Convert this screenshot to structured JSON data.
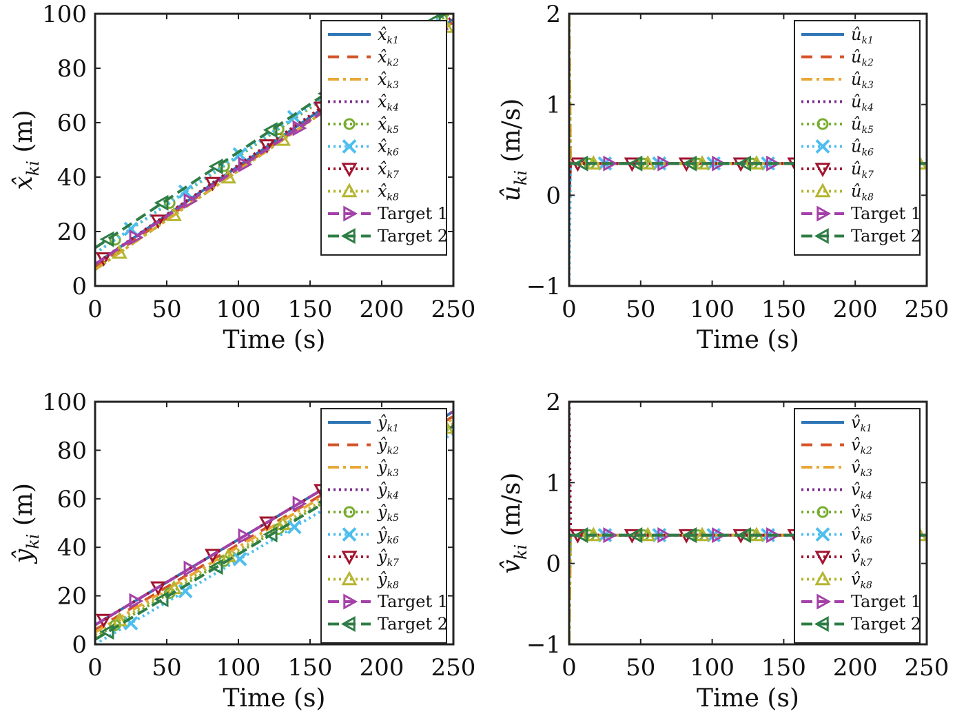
{
  "colors": {
    "s1": "#2E75B6",
    "s2": "#D4552B",
    "s3": "#E8A838",
    "s4": "#7B2E8C",
    "s5": "#77AC30",
    "s6": "#4DBEEE",
    "s7": "#A2142F",
    "s8": "#B5B530",
    "target1": "#A441A8",
    "target2": "#2E7D46"
  },
  "chart_data": [
    {
      "id": "xhat",
      "type": "line",
      "xlabel": "Time (s)",
      "ylabel_main": "x̂",
      "ylabel_sub": "ki",
      "ylabel_unit": " (m)",
      "xlim": [
        0,
        250
      ],
      "ylim": [
        0,
        100
      ],
      "xticks": [
        "0",
        "50",
        "100",
        "150",
        "200",
        "250"
      ],
      "yticks": [
        "0",
        "20",
        "40",
        "60",
        "80",
        "100"
      ],
      "legend_position": "top-right",
      "series": [
        {
          "name": "x̂",
          "sub": "k1",
          "x": [
            0,
            250
          ],
          "y": [
            8,
            98
          ]
        },
        {
          "name": "x̂",
          "sub": "k2",
          "x": [
            0,
            250
          ],
          "y": [
            7,
            97
          ]
        },
        {
          "name": "x̂",
          "sub": "k3",
          "x": [
            0,
            250
          ],
          "y": [
            6,
            97
          ]
        },
        {
          "name": "x̂",
          "sub": "k4",
          "x": [
            0,
            250
          ],
          "y": [
            8,
            99
          ]
        },
        {
          "name": "x̂",
          "sub": "k5",
          "x": [
            0,
            250
          ],
          "y": [
            12,
            101
          ]
        },
        {
          "name": "x̂",
          "sub": "k6",
          "x": [
            0,
            250
          ],
          "y": [
            12,
            102
          ]
        },
        {
          "name": "x̂",
          "sub": "k7",
          "x": [
            0,
            250
          ],
          "y": [
            8,
            99
          ]
        },
        {
          "name": "x̂",
          "sub": "k8",
          "x": [
            0,
            250
          ],
          "y": [
            6,
            97
          ]
        },
        {
          "name": "Target 1",
          "x": [
            0,
            250
          ],
          "y": [
            8,
            96
          ]
        },
        {
          "name": "Target 2",
          "x": [
            0,
            250
          ],
          "y": [
            14,
            102
          ]
        }
      ]
    },
    {
      "id": "uhat",
      "type": "line",
      "xlabel": "Time (s)",
      "ylabel_main": "û",
      "ylabel_sub": "ki",
      "ylabel_unit": " (m/s)",
      "xlim": [
        0,
        250
      ],
      "ylim": [
        -1,
        2
      ],
      "xticks": [
        "0",
        "50",
        "100",
        "150",
        "200",
        "250"
      ],
      "yticks": [
        "−1",
        "0",
        "1",
        "2"
      ],
      "legend_position": "top-right",
      "series": [
        {
          "name": "û",
          "sub": "k1",
          "x": [
            0,
            1,
            250
          ],
          "y": [
            0,
            0.35,
            0.35
          ]
        },
        {
          "name": "û",
          "sub": "k2",
          "x": [
            0,
            1,
            250
          ],
          "y": [
            0,
            0.35,
            0.35
          ]
        },
        {
          "name": "û",
          "sub": "k3",
          "x": [
            0,
            1,
            250
          ],
          "y": [
            2,
            0.35,
            0.35
          ]
        },
        {
          "name": "û",
          "sub": "k4",
          "x": [
            0,
            1,
            250
          ],
          "y": [
            0,
            0.35,
            0.35
          ]
        },
        {
          "name": "û",
          "sub": "k5",
          "x": [
            0,
            1,
            250
          ],
          "y": [
            0,
            0.35,
            0.35
          ]
        },
        {
          "name": "û",
          "sub": "k6",
          "x": [
            0,
            1,
            250
          ],
          "y": [
            -1,
            0.35,
            0.35
          ]
        },
        {
          "name": "û",
          "sub": "k7",
          "x": [
            0,
            1,
            250
          ],
          "y": [
            0,
            0.35,
            0.35
          ]
        },
        {
          "name": "û",
          "sub": "k8",
          "x": [
            0,
            1,
            250
          ],
          "y": [
            2,
            0.35,
            0.35
          ]
        },
        {
          "name": "Target 1",
          "x": [
            0,
            250
          ],
          "y": [
            0.35,
            0.35
          ]
        },
        {
          "name": "Target 2",
          "x": [
            0,
            250
          ],
          "y": [
            0.35,
            0.35
          ]
        }
      ]
    },
    {
      "id": "yhat",
      "type": "line",
      "xlabel": "Time (s)",
      "ylabel_main": "ŷ",
      "ylabel_sub": "ki",
      "ylabel_unit": " (m)",
      "xlim": [
        0,
        250
      ],
      "ylim": [
        0,
        100
      ],
      "xticks": [
        "0",
        "50",
        "100",
        "150",
        "200",
        "250"
      ],
      "yticks": [
        "0",
        "20",
        "40",
        "60",
        "80",
        "100"
      ],
      "legend_position": "top-right",
      "series": [
        {
          "name": "ŷ",
          "sub": "k1",
          "x": [
            0,
            250
          ],
          "y": [
            8,
            96
          ]
        },
        {
          "name": "ŷ",
          "sub": "k2",
          "x": [
            0,
            250
          ],
          "y": [
            6,
            94
          ]
        },
        {
          "name": "ŷ",
          "sub": "k3",
          "x": [
            0,
            250
          ],
          "y": [
            5,
            93
          ]
        },
        {
          "name": "ŷ",
          "sub": "k4",
          "x": [
            0,
            250
          ],
          "y": [
            8,
            96
          ]
        },
        {
          "name": "ŷ",
          "sub": "k5",
          "x": [
            0,
            250
          ],
          "y": [
            3,
            90
          ]
        },
        {
          "name": "ŷ",
          "sub": "k6",
          "x": [
            0,
            250
          ],
          "y": [
            0,
            87
          ]
        },
        {
          "name": "ŷ",
          "sub": "k7",
          "x": [
            0,
            250
          ],
          "y": [
            8,
            96
          ]
        },
        {
          "name": "ŷ",
          "sub": "k8",
          "x": [
            0,
            250
          ],
          "y": [
            4,
            91
          ]
        },
        {
          "name": "Target 1",
          "x": [
            0,
            250
          ],
          "y": [
            8,
            96
          ]
        },
        {
          "name": "Target 2",
          "x": [
            0,
            250
          ],
          "y": [
            2,
            90
          ]
        }
      ]
    },
    {
      "id": "vhat",
      "type": "line",
      "xlabel": "Time (s)",
      "ylabel_main": "v̂",
      "ylabel_sub": "ki",
      "ylabel_unit": " (m/s)",
      "xlim": [
        0,
        250
      ],
      "ylim": [
        -1,
        2
      ],
      "xticks": [
        "0",
        "50",
        "100",
        "150",
        "200",
        "250"
      ],
      "yticks": [
        "−1",
        "0",
        "1",
        "2"
      ],
      "legend_position": "top-right",
      "series": [
        {
          "name": "v̂",
          "sub": "k1",
          "x": [
            0,
            1,
            250
          ],
          "y": [
            0,
            0.35,
            0.35
          ]
        },
        {
          "name": "v̂",
          "sub": "k2",
          "x": [
            0,
            1,
            250
          ],
          "y": [
            0,
            0.35,
            0.35
          ]
        },
        {
          "name": "v̂",
          "sub": "k3",
          "x": [
            0,
            1,
            250
          ],
          "y": [
            -1,
            0.35,
            0.35
          ]
        },
        {
          "name": "v̂",
          "sub": "k4",
          "x": [
            0,
            1,
            250
          ],
          "y": [
            2,
            0.35,
            0.35
          ]
        },
        {
          "name": "v̂",
          "sub": "k5",
          "x": [
            0,
            1,
            250
          ],
          "y": [
            0,
            0.35,
            0.35
          ]
        },
        {
          "name": "v̂",
          "sub": "k6",
          "x": [
            0,
            1,
            250
          ],
          "y": [
            0,
            0.35,
            0.35
          ]
        },
        {
          "name": "v̂",
          "sub": "k7",
          "x": [
            0,
            1,
            250
          ],
          "y": [
            2,
            0.35,
            0.35
          ]
        },
        {
          "name": "v̂",
          "sub": "k8",
          "x": [
            0,
            1,
            250
          ],
          "y": [
            -1,
            0.35,
            0.35
          ]
        },
        {
          "name": "Target 1",
          "x": [
            0,
            250
          ],
          "y": [
            0.35,
            0.35
          ]
        },
        {
          "name": "Target 2",
          "x": [
            0,
            250
          ],
          "y": [
            0.35,
            0.35
          ]
        }
      ]
    }
  ]
}
